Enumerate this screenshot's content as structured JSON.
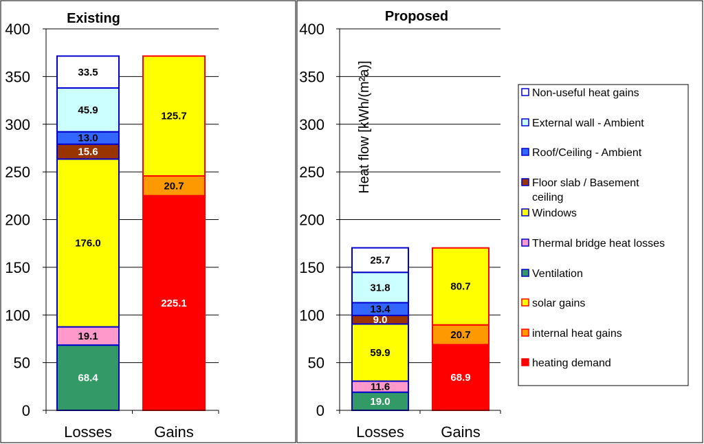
{
  "chart_data": [
    {
      "type": "bar",
      "stacked": true,
      "title": "Existing",
      "ylabel": "",
      "ylim": [
        0,
        400
      ],
      "yticks": [
        0,
        50,
        100,
        150,
        200,
        250,
        300,
        350,
        400
      ],
      "grid": true,
      "categories": [
        "Losses",
        "Gains"
      ],
      "series": [
        {
          "name": "Ventilation",
          "values": [
            68.4,
            null
          ]
        },
        {
          "name": "Thermal bridge heat losses",
          "values": [
            19.1,
            null
          ]
        },
        {
          "name": "Windows",
          "values": [
            176.0,
            null
          ]
        },
        {
          "name": "Floor slab / Basement ceiling",
          "values": [
            15.6,
            null
          ]
        },
        {
          "name": "Roof/Ceiling - Ambient",
          "values": [
            13.0,
            null
          ]
        },
        {
          "name": "External wall - Ambient",
          "values": [
            45.9,
            null
          ]
        },
        {
          "name": "Non-useful heat gains",
          "values": [
            33.5,
            null
          ]
        },
        {
          "name": "heating demand",
          "values": [
            null,
            225.1
          ]
        },
        {
          "name": "internal heat gains",
          "values": [
            null,
            20.7
          ]
        },
        {
          "name": "solar gains",
          "values": [
            null,
            125.7
          ]
        }
      ]
    },
    {
      "type": "bar",
      "stacked": true,
      "title": "Proposed",
      "ylabel": "Heat flow [kWh/(m²a)]",
      "ylim": [
        0,
        400
      ],
      "yticks": [
        0,
        50,
        100,
        150,
        200,
        250,
        300,
        350,
        400
      ],
      "grid": true,
      "categories": [
        "Losses",
        "Gains"
      ],
      "series": [
        {
          "name": "Ventilation",
          "values": [
            19.0,
            null
          ]
        },
        {
          "name": "Thermal bridge heat losses",
          "values": [
            11.6,
            null
          ]
        },
        {
          "name": "Windows",
          "values": [
            59.9,
            null
          ]
        },
        {
          "name": "Floor slab / Basement ceiling",
          "values": [
            9.0,
            null
          ]
        },
        {
          "name": "Roof/Ceiling - Ambient",
          "values": [
            13.4,
            null
          ]
        },
        {
          "name": "External wall - Ambient",
          "values": [
            31.8,
            null
          ]
        },
        {
          "name": "Non-useful heat gains",
          "values": [
            25.7,
            null
          ]
        },
        {
          "name": "heating demand",
          "values": [
            null,
            68.9
          ]
        },
        {
          "name": "internal heat gains",
          "values": [
            null,
            20.7
          ]
        },
        {
          "name": "solar gains",
          "values": [
            null,
            80.7
          ]
        }
      ]
    }
  ],
  "legend": {
    "placement": "right",
    "items": [
      {
        "label": "Non-useful heat gains",
        "fill": "#ffffff",
        "edge": "#0000cc",
        "text_color": "#000000"
      },
      {
        "label": "External wall - Ambient",
        "fill": "#ccffff",
        "edge": "#0000cc",
        "text_color": "#000000"
      },
      {
        "label": "Roof/Ceiling - Ambient",
        "fill": "#3366ff",
        "edge": "#0000cc",
        "text_color": "#000000"
      },
      {
        "label": [
          "Floor slab / Basement",
          "ceiling"
        ],
        "fill": "#993300",
        "edge": "#0000cc",
        "text_color": "#ffffff"
      },
      {
        "label": "Windows",
        "fill": "#ffff00",
        "edge": "#0000cc",
        "text_color": "#000000"
      },
      {
        "label": "Thermal bridge heat losses",
        "fill": "#ff99cc",
        "edge": "#0000cc",
        "text_color": "#000000"
      },
      {
        "label": "Ventilation",
        "fill": "#339966",
        "edge": "#0000cc",
        "text_color": "#ffffff"
      },
      {
        "label": "solar gains",
        "fill": "#ffff00",
        "edge": "#ff0000",
        "text_color": "#000000"
      },
      {
        "label": "internal heat gains",
        "fill": "#ff9900",
        "edge": "#ff0000",
        "text_color": "#000000"
      },
      {
        "label": "heating demand",
        "fill": "#ff0000",
        "edge": "#ff0000",
        "text_color": "#ffffff"
      }
    ]
  }
}
